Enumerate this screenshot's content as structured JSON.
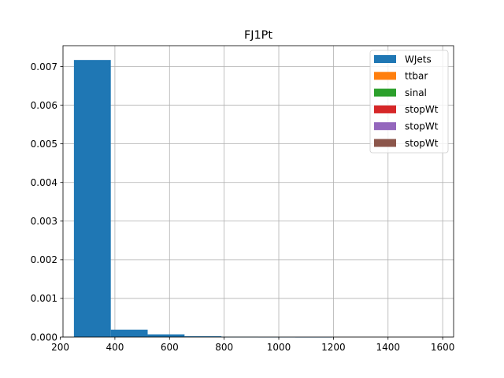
{
  "chart_data": {
    "type": "bar",
    "title": "FJ1Pt",
    "xlabel": "",
    "ylabel": "",
    "xlim": [
      210,
      1640
    ],
    "ylim": [
      0,
      0.00754
    ],
    "grid": true,
    "legend_position": "top-right",
    "xticks": [
      {
        "value": 200,
        "label": "200"
      },
      {
        "value": 400,
        "label": "400"
      },
      {
        "value": 600,
        "label": "600"
      },
      {
        "value": 800,
        "label": "800"
      },
      {
        "value": 1000,
        "label": "1000"
      },
      {
        "value": 1200,
        "label": "1200"
      },
      {
        "value": 1400,
        "label": "1400"
      },
      {
        "value": 1600,
        "label": "1600"
      }
    ],
    "yticks": [
      {
        "value": 0,
        "label": "0.000"
      },
      {
        "value": 0.001,
        "label": "0.001"
      },
      {
        "value": 0.002,
        "label": "0.002"
      },
      {
        "value": 0.003,
        "label": "0.003"
      },
      {
        "value": 0.004,
        "label": "0.004"
      },
      {
        "value": 0.005,
        "label": "0.005"
      },
      {
        "value": 0.006,
        "label": "0.006"
      },
      {
        "value": 0.007,
        "label": "0.007"
      }
    ],
    "bin_edges": [
      250,
      385,
      520,
      655,
      790,
      925,
      1060,
      1195,
      1330,
      1465,
      1600
    ],
    "series": [
      {
        "name": "WJets",
        "color": "#1f77b4",
        "values": [
          0.00717,
          0.00019,
          7e-05,
          2e-05,
          5e-06,
          2e-06,
          1e-06,
          0,
          0,
          0
        ]
      },
      {
        "name": "ttbar",
        "color": "#ff7f0e",
        "values": [
          0,
          0,
          0,
          0,
          0,
          0,
          0,
          0,
          0,
          0
        ]
      },
      {
        "name": "sinal",
        "color": "#2ca02c",
        "values": [
          0,
          0,
          0,
          0,
          0,
          0,
          0,
          0,
          0,
          0
        ]
      },
      {
        "name": "stopWt",
        "color": "#d62728",
        "values": [
          0,
          0,
          0,
          0,
          0,
          0,
          0,
          0,
          0,
          0
        ]
      },
      {
        "name": "stopWt",
        "color": "#9467bd",
        "values": [
          0,
          0,
          0,
          0,
          0,
          0,
          0,
          0,
          0,
          0
        ]
      },
      {
        "name": "stopWt",
        "color": "#8c564b",
        "values": [
          0,
          0,
          0,
          0,
          0,
          0,
          0,
          0,
          0,
          0
        ]
      }
    ]
  }
}
